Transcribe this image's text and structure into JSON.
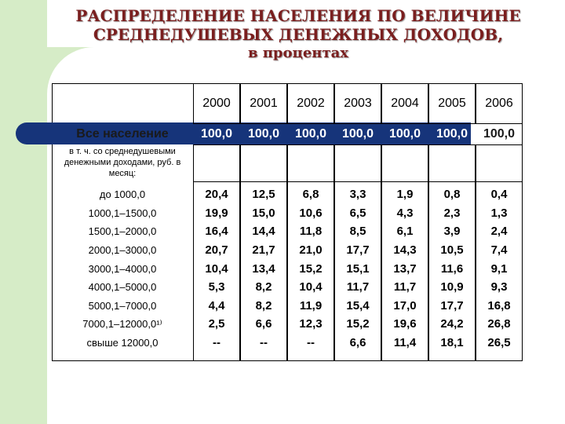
{
  "title": {
    "line1": "РАСПРЕДЕЛЕНИЕ НАСЕЛЕНИЯ ПО ВЕЛИЧИНЕ",
    "line2": "СРЕДНЕДУШЕВЫХ ДЕНЕЖНЫХ ДОХОДОВ,",
    "line3": "в процентах"
  },
  "years": [
    "2000",
    "2001",
    "2002",
    "2003",
    "2004",
    "2005",
    "2006"
  ],
  "all_population": {
    "label": "Все население",
    "values": [
      "100,0",
      "100,0",
      "100,0",
      "100,0",
      "100,0",
      "100,0",
      "100,0"
    ]
  },
  "subnote": "в т. ч. со среднедушевыми денежными доходами, руб. в месяц:",
  "rows": [
    {
      "label": "до 1000,0",
      "values": [
        "20,4",
        "12,5",
        "6,8",
        "3,3",
        "1,9",
        "0,8",
        "0,4"
      ]
    },
    {
      "label": "1000,1–1500,0",
      "values": [
        "19,9",
        "15,0",
        "10,6",
        "6,5",
        "4,3",
        "2,3",
        "1,3"
      ]
    },
    {
      "label": "1500,1–2000,0",
      "values": [
        "16,4",
        "14,4",
        "11,8",
        "8,5",
        "6,1",
        "3,9",
        "2,4"
      ]
    },
    {
      "label": "2000,1–3000,0",
      "values": [
        "20,7",
        "21,7",
        "21,0",
        "17,7",
        "14,3",
        "10,5",
        "7,4"
      ]
    },
    {
      "label": "3000,1–4000,0",
      "values": [
        "10,4",
        "13,4",
        "15,2",
        "15,1",
        "13,7",
        "11,6",
        "9,1"
      ]
    },
    {
      "label": "4000,1–5000,0",
      "values": [
        "5,3",
        "8,2",
        "10,4",
        "11,7",
        "11,7",
        "10,9",
        "9,3"
      ]
    },
    {
      "label": "5000,1–7000,0",
      "values": [
        "4,4",
        "8,2",
        "11,9",
        "15,4",
        "17,0",
        "17,7",
        "16,8"
      ]
    },
    {
      "label": "7000,1–12000,0¹⁾",
      "values": [
        "2,5",
        "6,6",
        "12,3",
        "15,2",
        "19,6",
        "24,2",
        "26,8"
      ]
    },
    {
      "label": "свыше 12000,0",
      "values": [
        "--",
        "--",
        "--",
        "6,6",
        "11,4",
        "18,1",
        "26,5"
      ]
    }
  ]
}
